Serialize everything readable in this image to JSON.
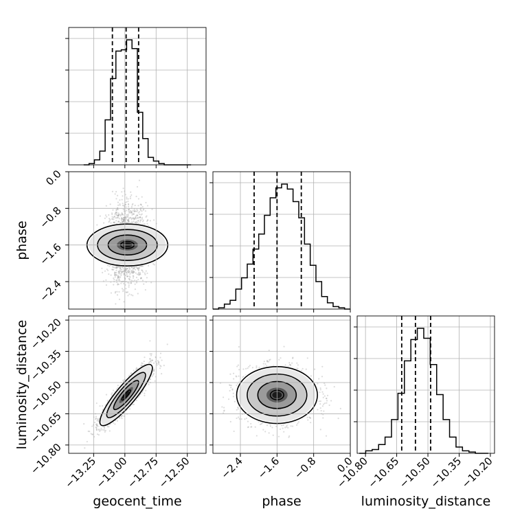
{
  "chart_data": {
    "type": "corner",
    "parameters": [
      "geocent_time",
      "phase",
      "luminosity_distance"
    ],
    "axis_labels": {
      "geocent_time": "geocent_time",
      "phase": "phase",
      "luminosity_distance": "luminosity_distance"
    },
    "ranges": {
      "geocent_time": [
        -13.45,
        -12.35
      ],
      "phase": [
        -3.0,
        0.0
      ],
      "luminosity_distance": [
        -10.84,
        -10.18
      ]
    },
    "ticks": {
      "geocent_time": {
        "values": [
          -13.25,
          -13.0,
          -12.75,
          -12.5
        ],
        "labels": [
          "−13.25",
          "−13.00",
          "−12.75",
          "−12.50"
        ]
      },
      "phase": {
        "values": [
          -2.4,
          -1.6,
          -0.8,
          0.0
        ],
        "labels": [
          "−2.4",
          "−1.6",
          "−0.8",
          "0.0"
        ]
      },
      "luminosity_distance": {
        "values": [
          -10.8,
          -10.65,
          -10.5,
          -10.35,
          -10.2
        ],
        "labels": [
          "−10.80",
          "−10.65",
          "−10.50",
          "−10.35",
          "−10.20"
        ]
      }
    },
    "quantiles": {
      "geocent_time": [
        -13.1,
        -12.99,
        -12.89
      ],
      "phase": [
        -2.1,
        -1.6,
        -1.07
      ],
      "luminosity_distance": [
        -10.626,
        -10.56,
        -10.487
      ]
    },
    "histograms": {
      "geocent_time": [
        0,
        0.01,
        0.04,
        0.11,
        0.36,
        0.69,
        0.91,
        0.92,
        1.0,
        0.93,
        0.42,
        0.21,
        0.06,
        0.03,
        0.01,
        0,
        0,
        0,
        0,
        0
      ],
      "phase": [
        0,
        0.01,
        0.04,
        0.07,
        0.16,
        0.25,
        0.36,
        0.48,
        0.6,
        0.75,
        0.89,
        0.97,
        1.0,
        0.96,
        0.86,
        0.73,
        0.52,
        0.35,
        0.22,
        0.1,
        0.05,
        0.02,
        0.01,
        0
      ],
      "luminosity_distance": [
        0,
        0.02,
        0.03,
        0.07,
        0.13,
        0.27,
        0.48,
        0.74,
        0.91,
        1.0,
        0.92,
        0.71,
        0.47,
        0.27,
        0.13,
        0.05,
        0.02,
        0.01,
        0,
        0
      ]
    },
    "posterior_2d": {
      "phase_vs_geocent_time": {
        "center": [
          -12.98,
          -1.6
        ],
        "sigma": [
          0.08,
          0.42
        ],
        "correlation": 0.05
      },
      "luminosity_distance_vs_geocent_time": {
        "center": [
          -12.99,
          -10.56
        ],
        "sigma": [
          0.1,
          0.07
        ],
        "correlation": 0.88
      },
      "luminosity_distance_vs_phase": {
        "center": [
          -1.6,
          -10.56
        ],
        "sigma": [
          0.42,
          0.065
        ],
        "correlation": 0.0
      }
    },
    "grid": true
  }
}
